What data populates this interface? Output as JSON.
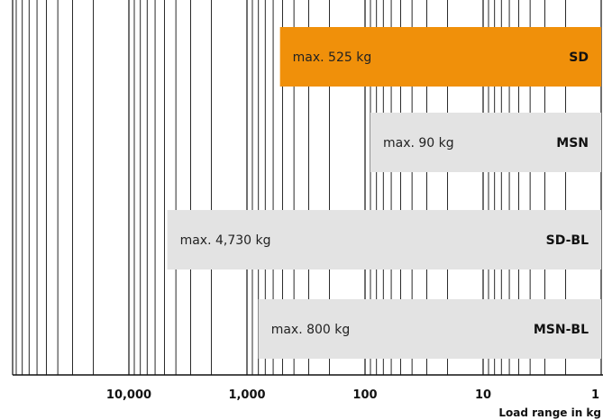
{
  "chart_data": {
    "type": "bar",
    "orientation": "horizontal",
    "x_scale": "log",
    "x_reversed": true,
    "xlim": [
      50000,
      1
    ],
    "grid": true,
    "xlabel": "Load range in kg",
    "x_ticks": [
      {
        "value": 10000,
        "label": "10,000"
      },
      {
        "value": 1000,
        "label": "1,000"
      },
      {
        "value": 100,
        "label": "100"
      },
      {
        "value": 10,
        "label": "10"
      },
      {
        "value": 1,
        "label": "1"
      }
    ],
    "categories": [
      "SD",
      "MSN",
      "SD-BL",
      "MSN-BL"
    ],
    "values": [
      525,
      90,
      4730,
      800
    ],
    "bar_labels": [
      "max. 525 kg",
      "max. 90 kg",
      "max. 4,730 kg",
      "max. 800 kg"
    ],
    "colors": {
      "highlight": "#F0900A",
      "default": "#E3E3E3",
      "grid": "#111111",
      "text": "#111111"
    },
    "highlight_index": 0
  }
}
